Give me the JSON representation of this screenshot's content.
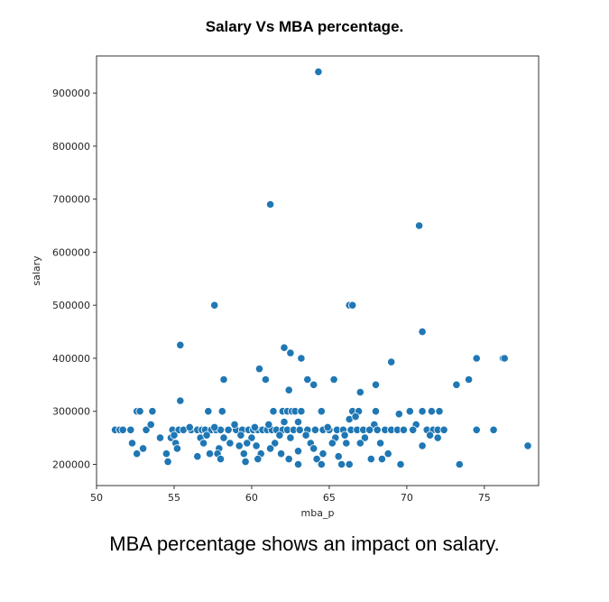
{
  "page": {
    "caption": "MBA percentage shows an impact on salary."
  },
  "chart_data": {
    "type": "scatter",
    "title": "Salary Vs MBA percentage.",
    "xlabel": "mba_p",
    "ylabel": "salary",
    "xlim": [
      50,
      78.5
    ],
    "ylim": [
      160000,
      970000
    ],
    "xticks": [
      50,
      55,
      60,
      65,
      70,
      75
    ],
    "yticks": [
      200000,
      300000,
      400000,
      500000,
      600000,
      700000,
      800000,
      900000
    ],
    "marker_color": "#1f77b4",
    "marker_edge": "#ffffff",
    "points": [
      [
        64.3,
        940000
      ],
      [
        61.2,
        690000
      ],
      [
        70.8,
        650000
      ],
      [
        57.6,
        500000
      ],
      [
        66.3,
        500000
      ],
      [
        66.5,
        500000
      ],
      [
        71.0,
        450000
      ],
      [
        55.4,
        425000
      ],
      [
        62.1,
        420000
      ],
      [
        62.5,
        410000
      ],
      [
        63.2,
        400000
      ],
      [
        74.5,
        400000
      ],
      [
        76.2,
        400000
      ],
      [
        76.3,
        400000
      ],
      [
        69.0,
        393000
      ],
      [
        60.5,
        380000
      ],
      [
        63.6,
        360000
      ],
      [
        58.2,
        360000
      ],
      [
        65.3,
        360000
      ],
      [
        74.0,
        360000
      ],
      [
        60.9,
        360000
      ],
      [
        64.0,
        350000
      ],
      [
        68.0,
        350000
      ],
      [
        73.2,
        350000
      ],
      [
        62.4,
        340000
      ],
      [
        67.0,
        336000
      ],
      [
        55.4,
        320000
      ],
      [
        52.6,
        300000
      ],
      [
        52.8,
        300000
      ],
      [
        53.6,
        300000
      ],
      [
        57.2,
        300000
      ],
      [
        58.1,
        300000
      ],
      [
        61.4,
        300000
      ],
      [
        62.0,
        300000
      ],
      [
        62.3,
        300000
      ],
      [
        62.6,
        300000
      ],
      [
        62.8,
        300000
      ],
      [
        63.2,
        300000
      ],
      [
        64.5,
        300000
      ],
      [
        66.5,
        300000
      ],
      [
        66.9,
        300000
      ],
      [
        68.0,
        300000
      ],
      [
        69.5,
        295000
      ],
      [
        70.2,
        300000
      ],
      [
        71.0,
        300000
      ],
      [
        71.6,
        300000
      ],
      [
        72.1,
        300000
      ],
      [
        62.1,
        280000
      ],
      [
        63.0,
        280000
      ],
      [
        67.9,
        275000
      ],
      [
        70.6,
        275000
      ],
      [
        51.2,
        265000
      ],
      [
        51.5,
        265000
      ],
      [
        51.7,
        265000
      ],
      [
        52.2,
        265000
      ],
      [
        53.2,
        265000
      ],
      [
        54.9,
        265000
      ],
      [
        55.3,
        265000
      ],
      [
        55.6,
        265000
      ],
      [
        56.1,
        265000
      ],
      [
        56.5,
        265000
      ],
      [
        56.8,
        265000
      ],
      [
        57.0,
        265000
      ],
      [
        57.4,
        265000
      ],
      [
        57.7,
        265000
      ],
      [
        58.0,
        265000
      ],
      [
        58.5,
        265000
      ],
      [
        59.0,
        265000
      ],
      [
        59.4,
        265000
      ],
      [
        59.8,
        265000
      ],
      [
        60.1,
        265000
      ],
      [
        60.4,
        265000
      ],
      [
        60.7,
        265000
      ],
      [
        61.0,
        265000
      ],
      [
        61.3,
        265000
      ],
      [
        61.6,
        265000
      ],
      [
        62.0,
        265000
      ],
      [
        62.3,
        265000
      ],
      [
        62.7,
        265000
      ],
      [
        63.1,
        265000
      ],
      [
        63.6,
        265000
      ],
      [
        64.1,
        265000
      ],
      [
        64.6,
        265000
      ],
      [
        65.0,
        265000
      ],
      [
        65.5,
        265000
      ],
      [
        65.9,
        265000
      ],
      [
        66.4,
        265000
      ],
      [
        66.8,
        265000
      ],
      [
        67.2,
        265000
      ],
      [
        67.6,
        265000
      ],
      [
        68.1,
        265000
      ],
      [
        68.6,
        265000
      ],
      [
        69.0,
        265000
      ],
      [
        69.4,
        265000
      ],
      [
        69.8,
        265000
      ],
      [
        70.4,
        265000
      ],
      [
        71.3,
        265000
      ],
      [
        71.7,
        265000
      ],
      [
        72.0,
        265000
      ],
      [
        72.4,
        265000
      ],
      [
        74.5,
        265000
      ],
      [
        75.6,
        265000
      ],
      [
        53.5,
        275000
      ],
      [
        56.0,
        270000
      ],
      [
        57.6,
        270000
      ],
      [
        58.9,
        275000
      ],
      [
        60.2,
        270000
      ],
      [
        61.1,
        275000
      ],
      [
        64.9,
        270000
      ],
      [
        66.3,
        285000
      ],
      [
        66.7,
        290000
      ],
      [
        54.1,
        250000
      ],
      [
        54.8,
        250000
      ],
      [
        55.0,
        255000
      ],
      [
        56.7,
        250000
      ],
      [
        57.1,
        255000
      ],
      [
        58.2,
        250000
      ],
      [
        59.3,
        255000
      ],
      [
        60.0,
        250000
      ],
      [
        61.8,
        255000
      ],
      [
        62.5,
        250000
      ],
      [
        63.5,
        255000
      ],
      [
        65.4,
        250000
      ],
      [
        66.0,
        255000
      ],
      [
        67.3,
        250000
      ],
      [
        71.5,
        255000
      ],
      [
        72.0,
        250000
      ],
      [
        52.3,
        240000
      ],
      [
        55.1,
        240000
      ],
      [
        56.9,
        240000
      ],
      [
        58.6,
        240000
      ],
      [
        59.7,
        240000
      ],
      [
        61.5,
        240000
      ],
      [
        63.8,
        240000
      ],
      [
        65.2,
        240000
      ],
      [
        66.1,
        240000
      ],
      [
        67.0,
        240000
      ],
      [
        68.3,
        240000
      ],
      [
        71.0,
        235000
      ],
      [
        77.8,
        235000
      ],
      [
        53.0,
        230000
      ],
      [
        55.2,
        230000
      ],
      [
        57.9,
        230000
      ],
      [
        59.2,
        235000
      ],
      [
        60.3,
        235000
      ],
      [
        61.2,
        230000
      ],
      [
        64.0,
        230000
      ],
      [
        52.6,
        220000
      ],
      [
        54.5,
        220000
      ],
      [
        56.5,
        215000
      ],
      [
        57.3,
        220000
      ],
      [
        57.8,
        220000
      ],
      [
        59.5,
        220000
      ],
      [
        60.6,
        220000
      ],
      [
        61.9,
        220000
      ],
      [
        63.0,
        225000
      ],
      [
        64.6,
        220000
      ],
      [
        65.6,
        215000
      ],
      [
        68.8,
        220000
      ],
      [
        54.6,
        205000
      ],
      [
        58.0,
        210000
      ],
      [
        59.6,
        205000
      ],
      [
        60.4,
        210000
      ],
      [
        62.4,
        210000
      ],
      [
        64.2,
        210000
      ],
      [
        65.8,
        200000
      ],
      [
        67.7,
        210000
      ],
      [
        68.4,
        210000
      ],
      [
        63.0,
        200000
      ],
      [
        64.5,
        200000
      ],
      [
        66.3,
        200000
      ],
      [
        69.6,
        200000
      ],
      [
        73.4,
        200000
      ]
    ]
  }
}
